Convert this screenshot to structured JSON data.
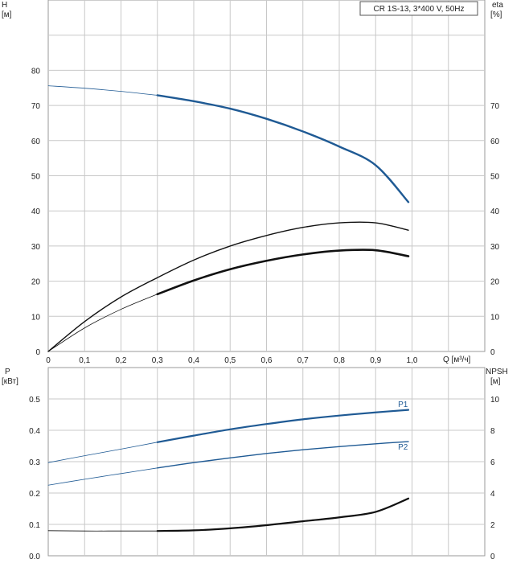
{
  "colors": {
    "grid": "#c8c8c8",
    "frame": "#9a9a9a",
    "blue": "#1f5a94",
    "black": "#111111",
    "text": "#222222"
  },
  "chart_data": [
    {
      "type": "line",
      "panel": "upper",
      "title": "CR 1S-13, 3*400 V, 50Hz",
      "xlabel": "Q [м³/ч]",
      "ylabel": "H\n[м]",
      "ylabel_right": "eta\n[%]",
      "xlim": [
        0,
        1.2
      ],
      "ylim": [
        0,
        100
      ],
      "xticks": [
        "0",
        "0,1",
        "0,2",
        "0,3",
        "0,4",
        "0,5",
        "0,6",
        "0,7",
        "0,8",
        "0,9",
        "1,0"
      ],
      "yticks_left": [
        "0",
        "10",
        "20",
        "30",
        "40",
        "50",
        "60",
        "70",
        "80"
      ],
      "yticks_right": [
        "0",
        "10",
        "20",
        "30",
        "40",
        "50",
        "60",
        "70"
      ],
      "grid": true,
      "series": [
        {
          "axis": "left",
          "color": "#1f5a94",
          "x": [
            0,
            0.1,
            0.2,
            0.3
          ],
          "y": [
            75.6,
            74.9,
            74.0,
            72.9
          ],
          "dashed_thin": true
        },
        {
          "axis": "left",
          "color": "#1f5a94",
          "x": [
            0.3,
            0.4,
            0.5,
            0.6,
            0.7,
            0.8,
            0.9,
            0.99
          ],
          "y": [
            72.9,
            71.2,
            69.1,
            66.2,
            62.6,
            58.3,
            53.0,
            42.5
          ]
        },
        {
          "axis": "right",
          "color": "#111111",
          "x": [
            0,
            0.1,
            0.2,
            0.3,
            0.4,
            0.5,
            0.6,
            0.7,
            0.8,
            0.9,
            0.99
          ],
          "y": [
            0,
            8.5,
            15.5,
            21.0,
            26.0,
            30.0,
            33.0,
            35.3,
            36.6,
            36.6,
            34.5
          ]
        },
        {
          "axis": "right",
          "color": "#111111",
          "x": [
            0,
            0.1,
            0.2,
            0.3
          ],
          "y": [
            0,
            6.7,
            12.0,
            16.3
          ],
          "dashed_thin": true
        },
        {
          "axis": "right",
          "color": "#111111",
          "x": [
            0.3,
            0.4,
            0.5,
            0.6,
            0.7,
            0.8,
            0.9,
            0.99
          ],
          "y": [
            16.3,
            20.2,
            23.4,
            25.8,
            27.6,
            28.7,
            28.8,
            27.1
          ]
        }
      ]
    },
    {
      "type": "line",
      "panel": "lower",
      "xlabel": "",
      "ylabel": "P\n[кВт]",
      "ylabel_right": "NPSH\n[м]",
      "xlim": [
        0,
        1.2
      ],
      "ylim": [
        0,
        0.5
      ],
      "yticks_left": [
        "0.0",
        "0.1",
        "0.2",
        "0.3",
        "0.4",
        "0.5"
      ],
      "yticks_right": [
        "0",
        "2",
        "4",
        "6",
        "8",
        "10"
      ],
      "grid": true,
      "series": [
        {
          "name": "P1",
          "axis": "left",
          "color": "#1f5a94",
          "x": [
            0,
            0.1,
            0.2,
            0.3
          ],
          "y": [
            0.297,
            0.319,
            0.34,
            0.362
          ],
          "dashed_thin": true
        },
        {
          "name": "P1",
          "axis": "left",
          "color": "#1f5a94",
          "x": [
            0.3,
            0.4,
            0.5,
            0.6,
            0.7,
            0.8,
            0.9,
            0.99
          ],
          "y": [
            0.362,
            0.383,
            0.403,
            0.42,
            0.435,
            0.447,
            0.457,
            0.465
          ]
        },
        {
          "name": "P2",
          "axis": "left",
          "color": "#1f5a94",
          "x": [
            0,
            0.1,
            0.2,
            0.3
          ],
          "y": [
            0.225,
            0.244,
            0.262,
            0.28
          ],
          "dashed_thin": true
        },
        {
          "name": "P2",
          "axis": "left",
          "color": "#1f5a94",
          "x": [
            0.3,
            0.4,
            0.5,
            0.6,
            0.7,
            0.8,
            0.9,
            0.99
          ],
          "y": [
            0.28,
            0.297,
            0.312,
            0.326,
            0.338,
            0.348,
            0.357,
            0.364
          ]
        },
        {
          "axis": "right",
          "color": "#111111",
          "x": [
            0,
            0.1,
            0.2,
            0.3
          ],
          "y": [
            1.6,
            1.58,
            1.58,
            1.58
          ],
          "dashed_thin": true
        },
        {
          "axis": "right",
          "color": "#111111",
          "x": [
            0.3,
            0.4,
            0.5,
            0.6,
            0.7,
            0.8,
            0.9,
            0.99
          ],
          "y": [
            1.58,
            1.62,
            1.75,
            1.95,
            2.2,
            2.45,
            2.8,
            3.65
          ]
        }
      ],
      "annotations": [
        {
          "text": "P1",
          "x": 0.975,
          "y": 0.474
        },
        {
          "text": "P2",
          "x": 0.975,
          "y": 0.338
        }
      ]
    }
  ]
}
